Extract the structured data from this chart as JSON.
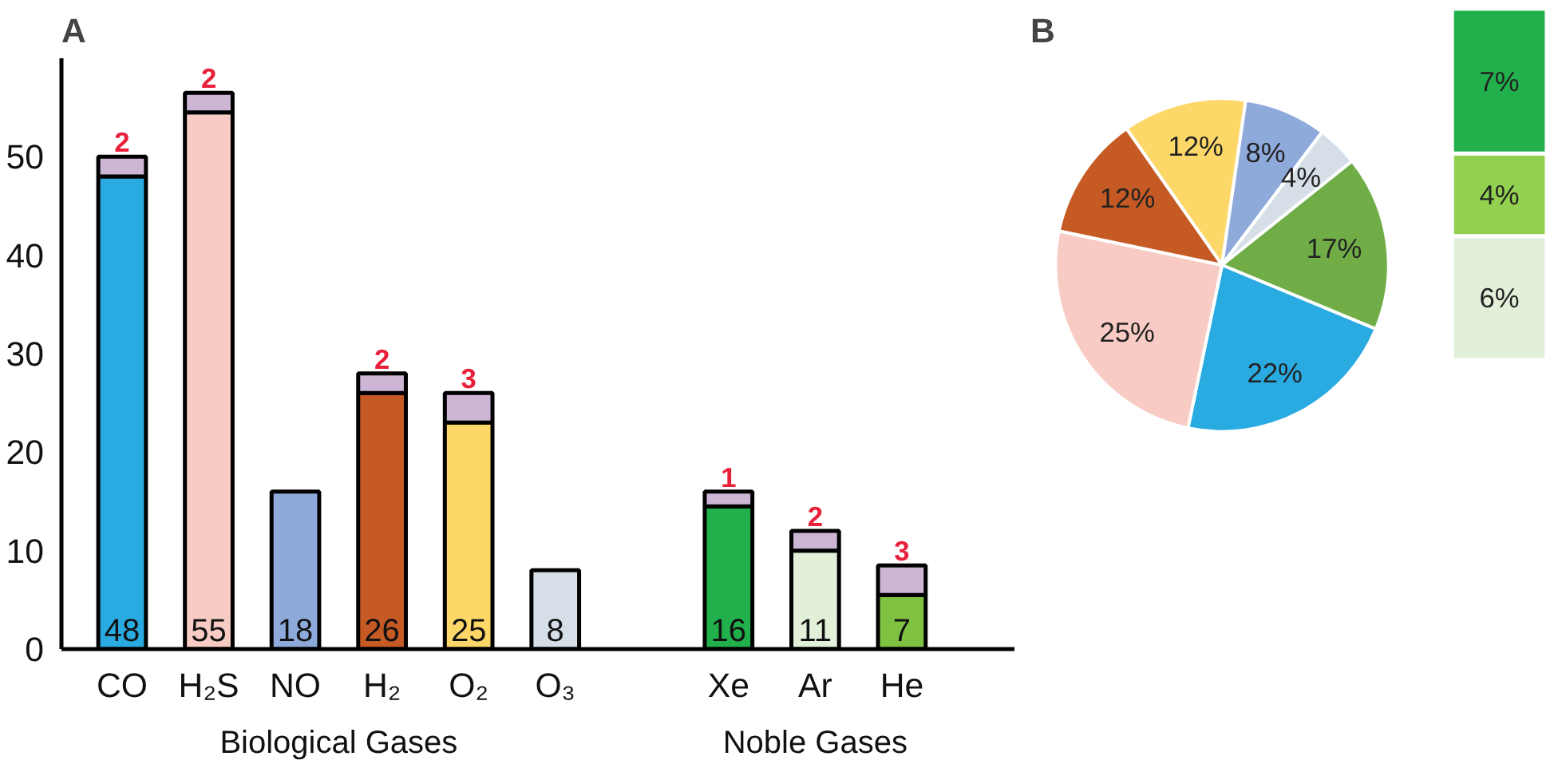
{
  "chart_data": [
    {
      "type": "bar",
      "title": "A",
      "stacked": true,
      "grid": false,
      "categories": [
        "CO",
        "H₂S",
        "NO",
        "H₂",
        "O₂",
        "O₃",
        null,
        "Xe",
        "Ar",
        "He"
      ],
      "series": [
        {
          "colors": [
            "#29abe2",
            "#f8cbc4",
            "#8eaadb",
            "#c55a24",
            "#fdd868",
            "#d6dfe8",
            null,
            "#21b04b",
            "#e2efd9",
            "#7fc241"
          ],
          "values": [
            48,
            54.5,
            16,
            26,
            23,
            8,
            null,
            14.5,
            10,
            5.5
          ]
        },
        {
          "color": "#cdb5d6",
          "values": [
            2,
            2,
            null,
            2,
            3,
            null,
            null,
            1.5,
            2,
            3
          ],
          "value_labels": [
            "2",
            "2",
            null,
            "2",
            "3",
            null,
            null,
            "1",
            "2",
            "3"
          ]
        }
      ],
      "ylim": [
        0,
        60
      ],
      "yticks": [
        0,
        10,
        20,
        30,
        40,
        50
      ],
      "annotations": [
        "Biological Gases",
        "Noble Gases",
        {
          "text": "48",
          "x": "CO",
          "y": 0
        },
        {
          "text": "55",
          "x": "H₂S",
          "y": 0
        },
        {
          "text": "18",
          "x": "NO",
          "y": 0
        },
        {
          "text": "26",
          "x": "H₂",
          "y": 0
        },
        {
          "text": "25",
          "x": "O₂",
          "y": 0
        },
        {
          "text": "8",
          "x": "O₃",
          "y": 0
        },
        {
          "text": "16",
          "x": "Xe",
          "y": 0
        },
        {
          "text": "11",
          "x": "Ar",
          "y": 0
        },
        {
          "text": "7",
          "x": "He",
          "y": 0
        }
      ]
    },
    {
      "type": "pie",
      "title": "B",
      "categories": [
        null,
        null,
        null,
        null,
        null,
        null,
        null
      ],
      "values": [
        12,
        8,
        4,
        17,
        22,
        25,
        12
      ],
      "value_labels": [
        "12%",
        "8%",
        "4%",
        "17%",
        "22%",
        "25%",
        "12%"
      ],
      "colors": [
        "#fdd868",
        "#8eaadb",
        "#d6dfe8",
        "#70ad47",
        "#29abe2",
        "#f8cbc4",
        "#c55a24"
      ]
    },
    {
      "type": "bar",
      "stacked": true,
      "categories": [
        null
      ],
      "series": [
        {
          "color": "#e2efd9",
          "values": [
            6
          ],
          "value_labels": [
            "6%"
          ]
        },
        {
          "color": "#92d050",
          "values": [
            4
          ],
          "value_labels": [
            "4%"
          ]
        },
        {
          "color": "#21b04b",
          "values": [
            7
          ],
          "value_labels": [
            "7%"
          ]
        }
      ]
    }
  ]
}
